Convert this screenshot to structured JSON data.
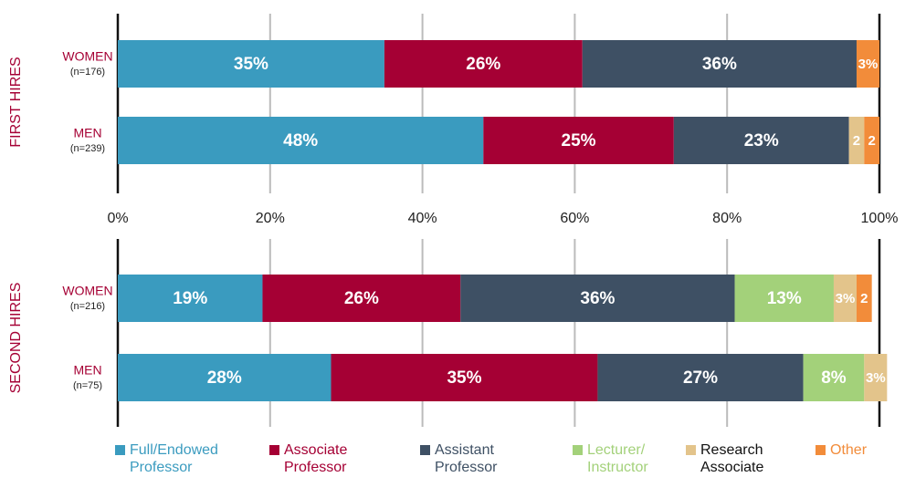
{
  "chart_data": {
    "type": "bar",
    "orientation": "horizontal",
    "stacked": true,
    "xlim": [
      0,
      100
    ],
    "xticks": [
      {
        "value": 0,
        "label": "0%"
      },
      {
        "value": 20,
        "label": "20%"
      },
      {
        "value": 40,
        "label": "40%"
      },
      {
        "value": 60,
        "label": "60%"
      },
      {
        "value": 80,
        "label": "80%"
      },
      {
        "value": 100,
        "label": "100%"
      }
    ],
    "grid": true,
    "series": [
      {
        "name": "Full/Endowed Professor",
        "color": "#3a9bbf",
        "label_color": "#3a9bbf"
      },
      {
        "name": "Associate Professor",
        "color": "#a50034",
        "label_color": "#a50034"
      },
      {
        "name": "Assistant Professor",
        "color": "#3e5064",
        "label_color": "#3e5064"
      },
      {
        "name": "Lecturer/ Instructor",
        "color": "#a3d17a",
        "label_color": "#a3d17a"
      },
      {
        "name": "Research Associate",
        "color": "#e3c48b",
        "label_color": "#111111"
      },
      {
        "name": "Other",
        "color": "#f28c3a",
        "label_color": "#f28c3a"
      }
    ],
    "panels": [
      {
        "title": "FIRST HIRES",
        "categories": [
          "WOMEN",
          "MEN"
        ],
        "n_labels": [
          "(n=176)",
          "(n=239)"
        ],
        "values": [
          [
            35,
            48
          ],
          [
            26,
            25
          ],
          [
            36,
            23
          ],
          [
            0,
            0
          ],
          [
            0,
            2
          ],
          [
            3,
            2
          ]
        ],
        "value_labels": [
          [
            "35%",
            "48%"
          ],
          [
            "26%",
            "25%"
          ],
          [
            "36%",
            "23%"
          ],
          [
            null,
            null
          ],
          [
            null,
            "2"
          ],
          [
            "3%",
            "2"
          ]
        ]
      },
      {
        "title": "SECOND HIRES",
        "categories": [
          "WOMEN",
          "MEN"
        ],
        "n_labels": [
          "(n=216)",
          "(n=75)"
        ],
        "values": [
          [
            19,
            28
          ],
          [
            26,
            35
          ],
          [
            36,
            27
          ],
          [
            13,
            8
          ],
          [
            3,
            3
          ],
          [
            2,
            0
          ]
        ],
        "value_labels": [
          [
            "19%",
            "28%"
          ],
          [
            "26%",
            "35%"
          ],
          [
            "36%",
            "27%"
          ],
          [
            "13%",
            "8%"
          ],
          [
            "3%",
            "3%"
          ],
          [
            "2",
            null
          ]
        ]
      }
    ]
  }
}
